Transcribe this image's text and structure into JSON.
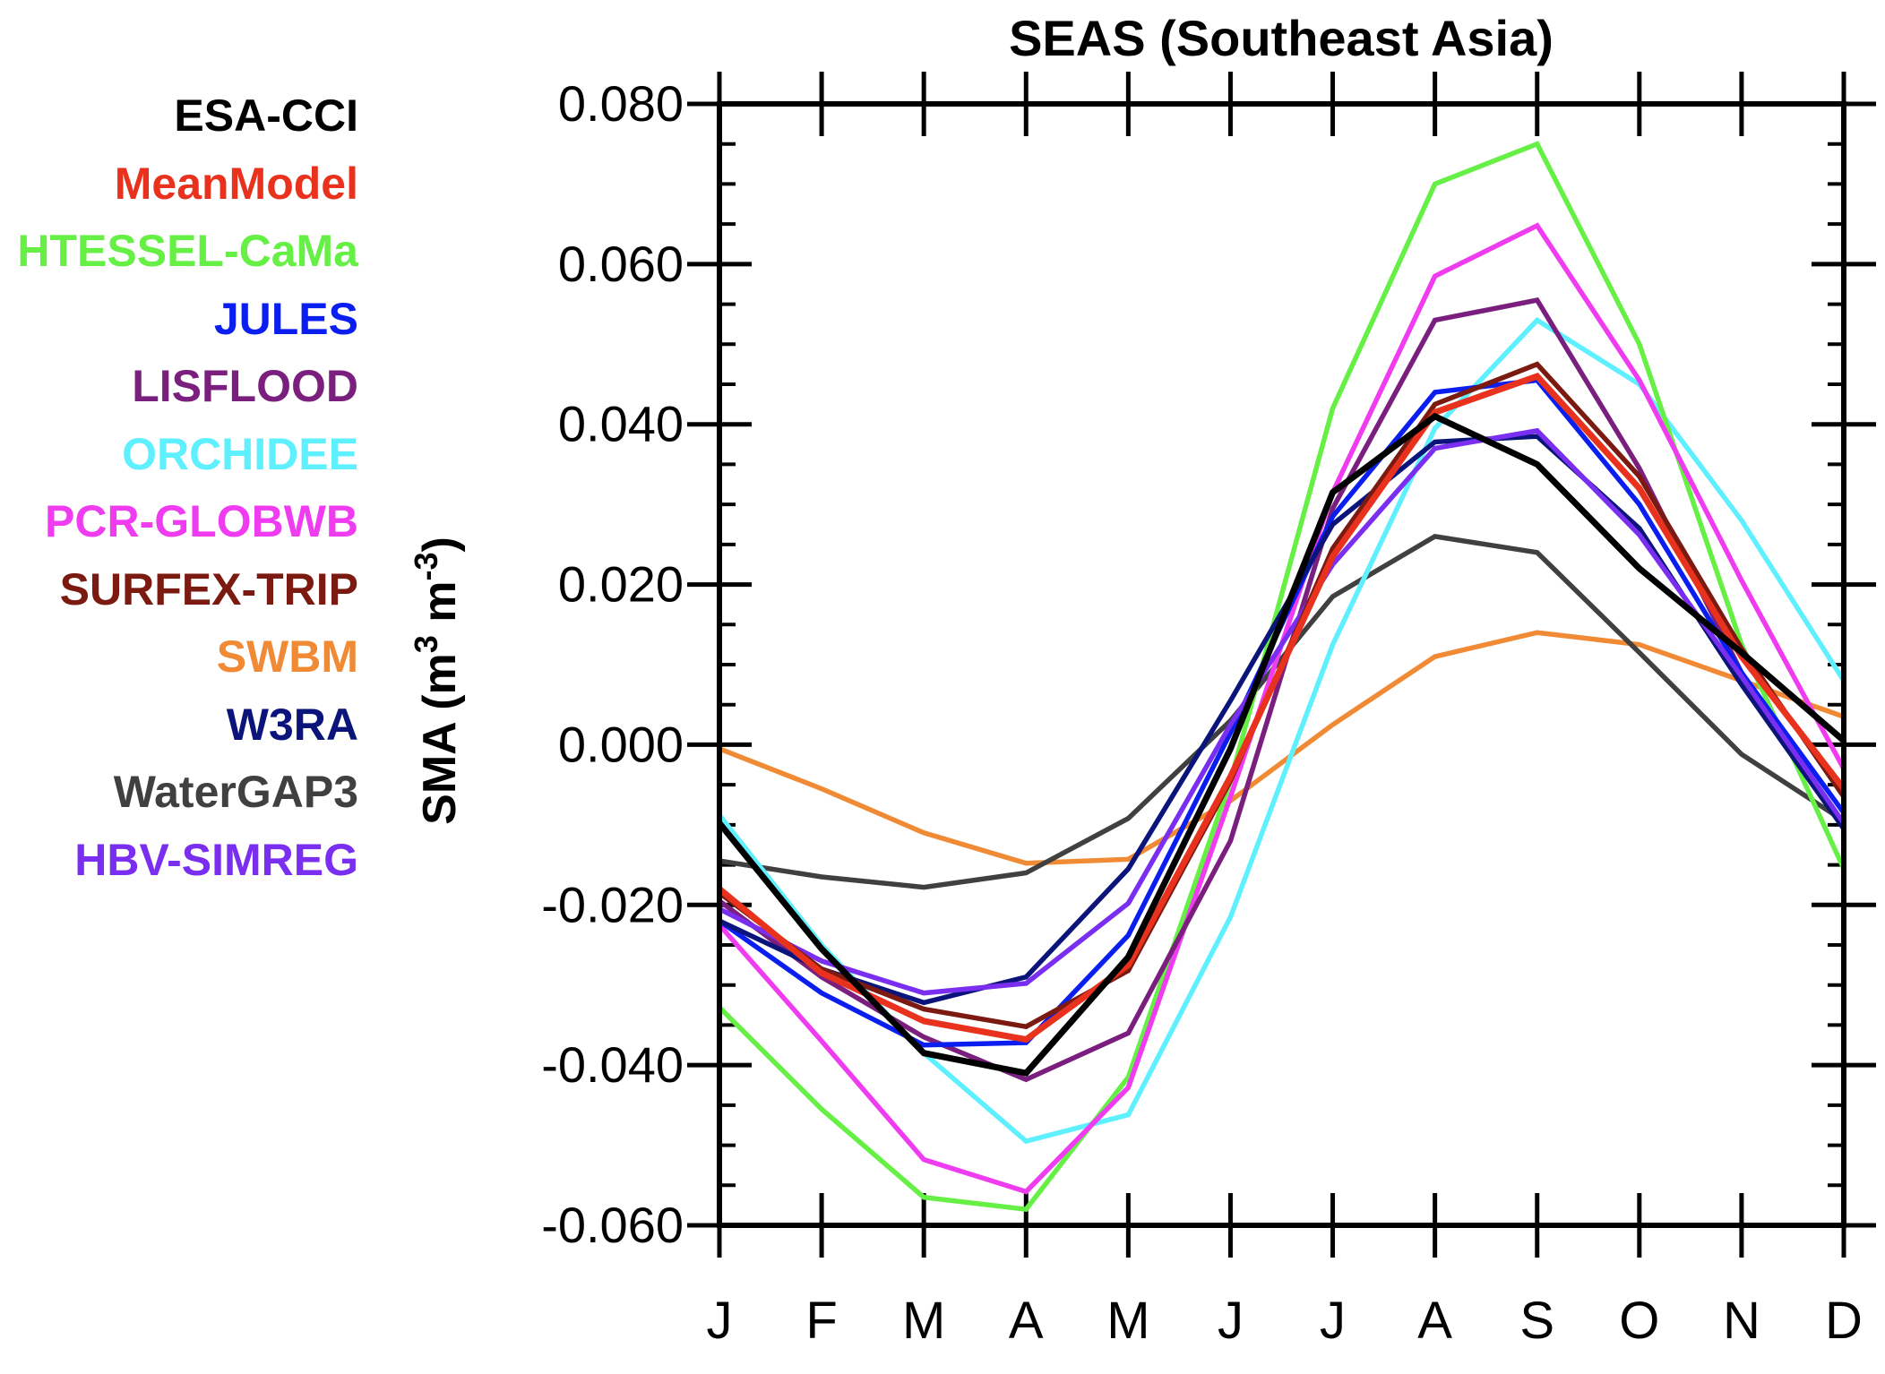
{
  "chart_data": {
    "type": "line",
    "title": "SEAS (Southeast Asia)",
    "ylabel": "SMA (m",
    "ylabel_unit_mid": " m",
    "ylabel_end": ")",
    "ylabel_exp": "3",
    "ylabel_exp2": "-3",
    "xlabel": "",
    "ylim": [
      -0.06,
      0.08
    ],
    "yticks": [
      "0.080",
      "0.060",
      "0.040",
      "0.020",
      "0.000",
      "-0.020",
      "-0.040",
      "-0.060"
    ],
    "ytick_values": [
      0.08,
      0.06,
      0.04,
      0.02,
      0.0,
      -0.02,
      -0.04,
      -0.06
    ],
    "categories": [
      "J",
      "F",
      "M",
      "A",
      "M",
      "J",
      "J",
      "A",
      "S",
      "O",
      "N",
      "D"
    ],
    "grid": false,
    "legend_position": "left",
    "series": [
      {
        "name": "SWBM",
        "color": "#f08a35",
        "values": [
          -0.0005,
          -0.0055,
          -0.011,
          -0.0148,
          -0.0143,
          -0.007,
          0.0025,
          0.011,
          0.014,
          0.0125,
          0.008,
          0.0035
        ]
      },
      {
        "name": "WaterGAP3",
        "color": "#404040",
        "values": [
          -0.0145,
          -0.0165,
          -0.0178,
          -0.016,
          -0.0092,
          0.003,
          0.0185,
          0.026,
          0.024,
          0.0115,
          -0.0012,
          -0.0095
        ]
      },
      {
        "name": "ORCHIDEE",
        "color": "#5ff0ff",
        "values": [
          -0.0088,
          -0.025,
          -0.0385,
          -0.0495,
          -0.0462,
          -0.0215,
          0.0125,
          0.0395,
          0.053,
          0.045,
          0.028,
          0.008
        ]
      },
      {
        "name": "HTESSEL-CaMa",
        "color": "#66f045",
        "values": [
          -0.0328,
          -0.0455,
          -0.0565,
          -0.058,
          -0.0415,
          -0.0045,
          0.042,
          0.07,
          0.075,
          0.05,
          0.0125,
          -0.0155
        ]
      },
      {
        "name": "PCR-GLOBWB",
        "color": "#f03cf0",
        "values": [
          -0.0225,
          -0.037,
          -0.0518,
          -0.0558,
          -0.0428,
          -0.0065,
          0.0315,
          0.0585,
          0.0648,
          0.0455,
          0.0205,
          -0.003
        ]
      },
      {
        "name": "LISFLOOD",
        "color": "#7a1f7e",
        "values": [
          -0.0195,
          -0.029,
          -0.0365,
          -0.0418,
          -0.036,
          -0.012,
          0.0295,
          0.053,
          0.0555,
          0.0345,
          0.009,
          -0.0105
        ]
      },
      {
        "name": "JULES",
        "color": "#0a1ef0",
        "values": [
          -0.022,
          -0.031,
          -0.0375,
          -0.0372,
          -0.0238,
          0.0015,
          0.0285,
          0.044,
          0.0455,
          0.03,
          0.009,
          -0.0085
        ]
      },
      {
        "name": "W3RA",
        "color": "#0a147a",
        "values": [
          -0.022,
          -0.028,
          -0.0322,
          -0.029,
          -0.0155,
          0.0055,
          0.0275,
          0.0378,
          0.0385,
          0.027,
          0.0075,
          -0.0105
        ]
      },
      {
        "name": "HBV-SIMREG",
        "color": "#7a2ef0",
        "values": [
          -0.0205,
          -0.027,
          -0.031,
          -0.0298,
          -0.0198,
          0.0025,
          0.0225,
          0.037,
          0.0392,
          0.0262,
          0.0085,
          -0.0098
        ]
      },
      {
        "name": "SURFEX-TRIP",
        "color": "#7a1a10",
        "values": [
          -0.0185,
          -0.028,
          -0.033,
          -0.0352,
          -0.0282,
          -0.0045,
          0.0245,
          0.0425,
          0.0475,
          0.0335,
          0.012,
          -0.0065
        ]
      },
      {
        "name": "MeanModel",
        "color": "#e8321e",
        "values": [
          -0.018,
          -0.0285,
          -0.0345,
          -0.0368,
          -0.0275,
          -0.004,
          0.0235,
          0.0415,
          0.046,
          0.032,
          0.011,
          -0.0055
        ]
      },
      {
        "name": "ESA-CCI",
        "color": "#000000",
        "values": [
          -0.0098,
          -0.0255,
          -0.0385,
          -0.041,
          -0.0265,
          -0.0005,
          0.0315,
          0.041,
          0.035,
          0.022,
          0.0115,
          0.0005
        ]
      }
    ],
    "legend": [
      {
        "name": "ESA-CCI",
        "color": "#000000"
      },
      {
        "name": "MeanModel",
        "color": "#e8321e"
      },
      {
        "name": "HTESSEL-CaMa",
        "color": "#66f045"
      },
      {
        "name": "JULES",
        "color": "#0a1ef0"
      },
      {
        "name": "LISFLOOD",
        "color": "#7a1f7e"
      },
      {
        "name": "ORCHIDEE",
        "color": "#5ff0ff"
      },
      {
        "name": "PCR-GLOBWB",
        "color": "#f03cf0"
      },
      {
        "name": "SURFEX-TRIP",
        "color": "#7a1a10"
      },
      {
        "name": "SWBM",
        "color": "#f08a35"
      },
      {
        "name": "W3RA",
        "color": "#0a147a"
      },
      {
        "name": "WaterGAP3",
        "color": "#404040"
      },
      {
        "name": "HBV-SIMREG",
        "color": "#7a2ef0"
      }
    ]
  }
}
